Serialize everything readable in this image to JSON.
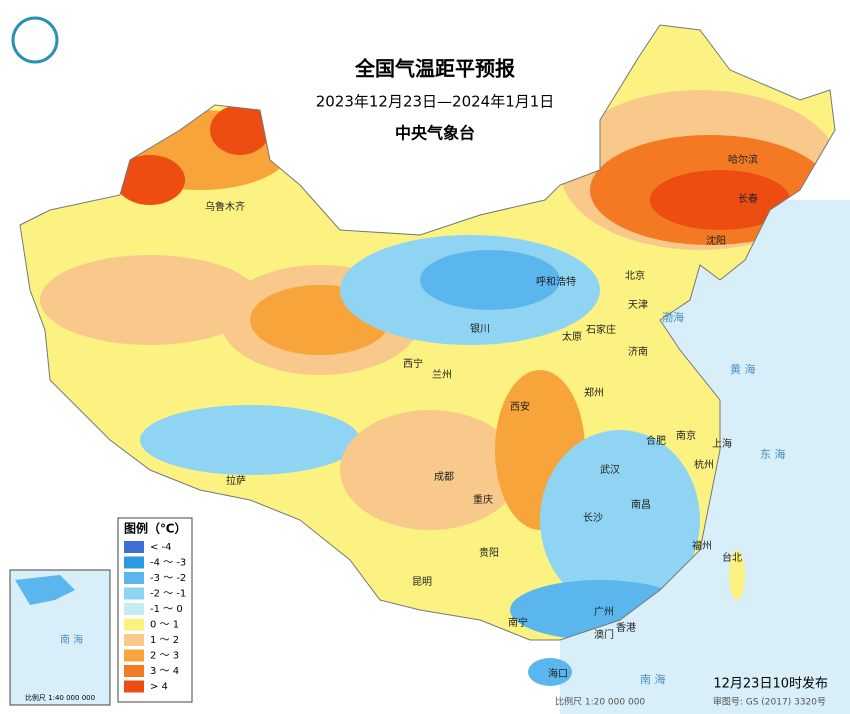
{
  "header": {
    "title": "全国气温距平预报",
    "subtitle": "2023年12月23日—2024年1月1日",
    "issuer": "中央气象台"
  },
  "legend": {
    "title": "图例（℃）",
    "items": [
      {
        "label": "< -4",
        "color": "#3f6fd6"
      },
      {
        "label": "-4 ～ -3",
        "color": "#2a9be0"
      },
      {
        "label": "-3 ～ -2",
        "color": "#5ab6ec"
      },
      {
        "label": "-2 ～ -1",
        "color": "#8fd5f3"
      },
      {
        "label": "-1 ～ 0",
        "color": "#c6ecf2"
      },
      {
        "label": "0 ～ 1",
        "color": "#fbf282"
      },
      {
        "label": "1 ～ 2",
        "color": "#f8c98a"
      },
      {
        "label": "2 ～ 3",
        "color": "#f7a43a"
      },
      {
        "label": "3 ～ 4",
        "color": "#f37a22"
      },
      {
        "label": "> 4",
        "color": "#ee4d12"
      }
    ]
  },
  "cities": [
    "乌鲁木齐",
    "哈尔滨",
    "长春",
    "沈阳",
    "北京",
    "天津",
    "呼和浩特",
    "石家庄",
    "银川",
    "太原",
    "济南",
    "西宁",
    "兰州",
    "郑州",
    "西安",
    "合肥",
    "南京",
    "上海",
    "成都",
    "武汉",
    "杭州",
    "拉萨",
    "重庆",
    "长沙",
    "南昌",
    "福州",
    "贵阳",
    "台北",
    "昆明",
    "南宁",
    "广州",
    "澳门",
    "香港",
    "海口"
  ],
  "seas": [
    "渤海",
    "黄 海",
    "东 海",
    "南 海"
  ],
  "inset": {
    "label": "南 海",
    "scale": "比例尺 1:40 000 000"
  },
  "footer": {
    "issued": "12月23日10时发布",
    "scale": "比例尺 1:20 000 000",
    "approval": "审图号: GS (2017) 3320号"
  }
}
